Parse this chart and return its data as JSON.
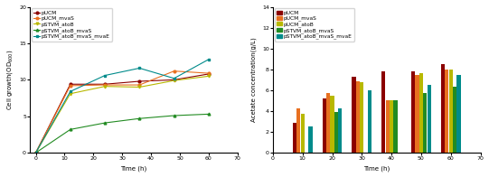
{
  "line_series": {
    "pUCM": {
      "x": [
        0,
        12,
        24,
        36,
        48,
        60
      ],
      "y": [
        0,
        9.4,
        9.4,
        9.8,
        10.0,
        10.8
      ],
      "color": "#8B0000",
      "marker": "o"
    },
    "pUCM_mvaS": {
      "x": [
        0,
        12,
        24,
        36,
        48,
        60
      ],
      "y": [
        0,
        9.2,
        9.3,
        9.3,
        11.2,
        10.9
      ],
      "color": "#E87020",
      "marker": "o"
    },
    "pSTVM_atoB": {
      "x": [
        0,
        12,
        24,
        36,
        48,
        60
      ],
      "y": [
        0,
        8.1,
        9.1,
        9.0,
        9.9,
        10.5
      ],
      "color": "#B8B800",
      "marker": "v"
    },
    "pSTVM_atoB_mvaS": {
      "x": [
        0,
        12,
        24,
        36,
        48,
        60
      ],
      "y": [
        0,
        3.2,
        4.1,
        4.7,
        5.1,
        5.3
      ],
      "color": "#228B22",
      "marker": "^"
    },
    "pSTVM_atoB_mvaS_mvaE": {
      "x": [
        0,
        12,
        24,
        36,
        48,
        60
      ],
      "y": [
        0,
        8.4,
        10.6,
        11.6,
        10.2,
        12.8
      ],
      "color": "#008B8B",
      "marker": "s"
    }
  },
  "bar_legend_order": [
    "pUCM",
    "pUCM_mvaS",
    "pUCM_atoB",
    "pSTVM_atoB_mvaS",
    "pSTVM_atoB_mvaS_mvaE"
  ],
  "bar_data": {
    "pUCM": {
      "color": "#8B0000",
      "values": [
        [
          10,
          2.9
        ],
        [
          20,
          5.2
        ],
        [
          30,
          7.3
        ],
        [
          40,
          7.8
        ],
        [
          50,
          7.8
        ],
        [
          60,
          8.5
        ]
      ]
    },
    "pUCM_mvaS": {
      "color": "#E87020",
      "values": [
        [
          10,
          4.3
        ],
        [
          20,
          5.7
        ],
        [
          30,
          6.9
        ],
        [
          40,
          5.0
        ],
        [
          50,
          7.5
        ],
        [
          60,
          8.0
        ]
      ]
    },
    "pUCM_atoB": {
      "color": "#B8B800",
      "values": [
        [
          10,
          3.7
        ],
        [
          20,
          5.5
        ],
        [
          30,
          6.8
        ],
        [
          40,
          5.0
        ],
        [
          50,
          7.6
        ],
        [
          60,
          8.0
        ]
      ]
    },
    "pSTVM_atoB_mvaS": {
      "color": "#228B22",
      "values": [
        [
          20,
          3.9
        ],
        [
          30,
          0.0
        ],
        [
          40,
          5.0
        ],
        [
          50,
          5.7
        ],
        [
          60,
          6.3
        ]
      ]
    },
    "pSTVM_atoB_mvaS_mvaE": {
      "color": "#008B8B",
      "values": [
        [
          10,
          2.5
        ],
        [
          20,
          4.3
        ],
        [
          30,
          6.0
        ],
        [
          40,
          0.0
        ],
        [
          50,
          6.5
        ],
        [
          60,
          7.5
        ]
      ]
    }
  },
  "line_legend_order": [
    "pUCM",
    "pUCM_mvaS",
    "pSTVM_atoB",
    "pSTVM_atoB_mvaS",
    "pSTVM_atoB_mvaS_mvaE"
  ],
  "line_ylabel": "Cell growth(OD$_{600}$)",
  "bar_ylabel": "Acetate concentration(g/L)",
  "xlabel": "Time (h)",
  "line_ylim": [
    0,
    20
  ],
  "bar_ylim": [
    0,
    14
  ],
  "line_yticks": [
    0,
    5,
    10,
    15,
    20
  ],
  "bar_yticks": [
    0,
    2,
    4,
    6,
    8,
    10,
    12,
    14
  ],
  "xlim": [
    -2,
    70
  ],
  "xticks": [
    0,
    10,
    20,
    30,
    40,
    50,
    60,
    70
  ],
  "bar_xlim": [
    0,
    70
  ],
  "bar_xticks": [
    0,
    10,
    20,
    30,
    40,
    50,
    60,
    70
  ],
  "bar_group_positions": [
    10,
    20,
    30,
    40,
    50,
    60
  ],
  "bar_width": 1.3,
  "bar_gap": 0.05,
  "font_size": 5.0,
  "tick_font_size": 4.5,
  "legend_font_size": 4.2,
  "line_marker_size": 2.0,
  "line_width": 0.8
}
